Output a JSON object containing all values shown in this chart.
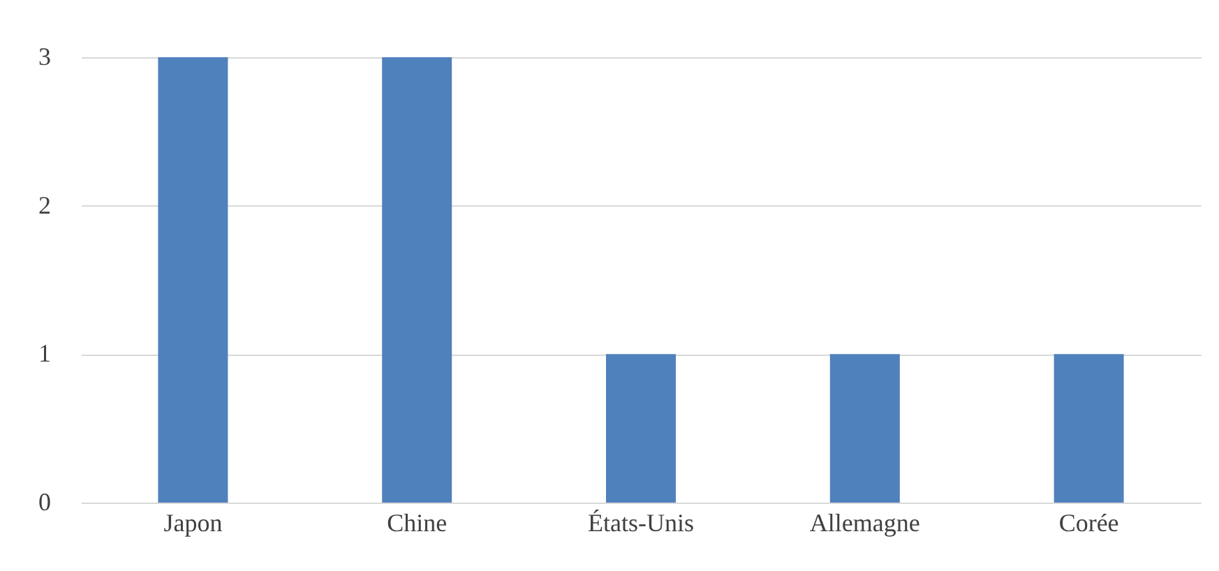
{
  "chart_data": {
    "type": "bar",
    "categories": [
      "Japon",
      "Chine",
      "États-Unis",
      "Allemagne",
      "Corée"
    ],
    "values": [
      3,
      3,
      1,
      1,
      1
    ],
    "color": "#4f81bd",
    "ylim": [
      0,
      3
    ],
    "yticks": [
      0,
      1,
      2,
      3
    ],
    "grid": "y"
  }
}
